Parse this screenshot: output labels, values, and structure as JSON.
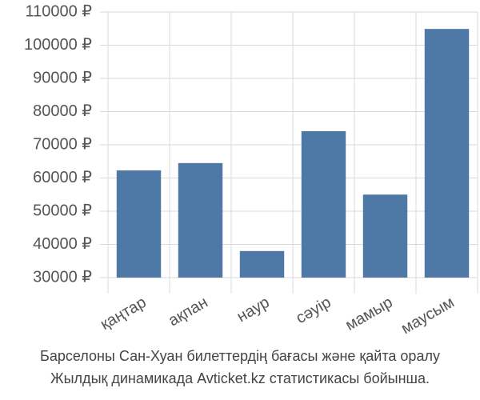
{
  "chart_data": {
    "type": "bar",
    "categories": [
      "қаңтар",
      "ақпан",
      "наур",
      "сәуір",
      "мамыр",
      "маусым"
    ],
    "values": [
      62300,
      64500,
      38000,
      74100,
      55000,
      104900
    ],
    "color": "#4e79a7",
    "ylim": [
      30000,
      110000
    ],
    "yticks": [
      {
        "value": 30000,
        "label": "30000 ₽"
      },
      {
        "value": 40000,
        "label": "40000 ₽"
      },
      {
        "value": 50000,
        "label": "50000 ₽"
      },
      {
        "value": 60000,
        "label": "60000 ₽"
      },
      {
        "value": 70000,
        "label": "70000 ₽"
      },
      {
        "value": 80000,
        "label": "80000 ₽"
      },
      {
        "value": 90000,
        "label": "90000 ₽"
      },
      {
        "value": 100000,
        "label": "100000 ₽"
      },
      {
        "value": 110000,
        "label": "110000 ₽"
      }
    ],
    "grid": true,
    "caption": [
      "Барселоны Сан-Хуан билеттердің бағасы және қайта оралу",
      "Жылдық динамикада Avticket.kz статистикасы бойынша."
    ]
  }
}
